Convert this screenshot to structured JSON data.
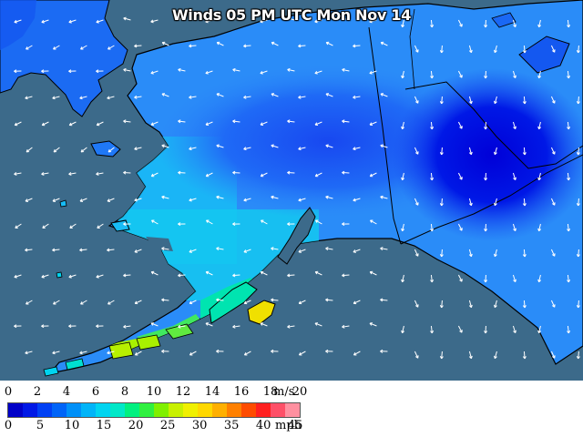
{
  "title": "Winds 05 PM UTC Mon Nov 14",
  "legend": {
    "ms_unit": "m/s",
    "mph_unit": "mph",
    "ms_ticks": [
      "0",
      "2",
      "4",
      "6",
      "8",
      "10",
      "12",
      "14",
      "16",
      "18",
      "20"
    ],
    "mph_ticks": [
      "0",
      "5",
      "10",
      "15",
      "20",
      "25",
      "30",
      "35",
      "40",
      "45"
    ],
    "colors": [
      "#0000c8",
      "#0018e6",
      "#0040f4",
      "#0064f8",
      "#0090f8",
      "#00b4f8",
      "#00d4f0",
      "#00e8c8",
      "#00f080",
      "#30f040",
      "#80f000",
      "#c8f000",
      "#f0f000",
      "#ffd800",
      "#ffb000",
      "#ff8000",
      "#ff4c00",
      "#ff2020",
      "#ff5068",
      "#ff90a0"
    ]
  },
  "map": {
    "water_color": "#3c6a8a",
    "wind_arrows": "white"
  }
}
